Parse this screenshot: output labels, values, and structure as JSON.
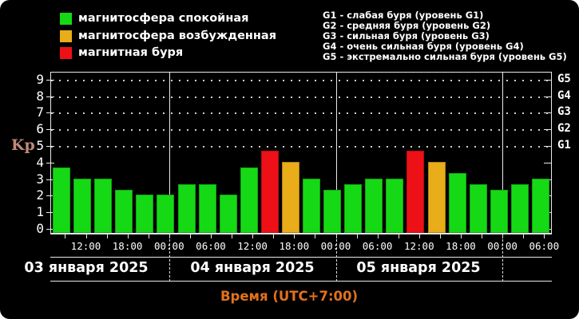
{
  "legend": {
    "items": [
      {
        "status": "quiet",
        "label": "магнитосфера спокойная"
      },
      {
        "status": "excited",
        "label": "магнитосфера возбужденная"
      },
      {
        "status": "storm",
        "label": "магнитная буря"
      }
    ]
  },
  "storm_levels": {
    "lines": [
      "G1 - слабая буря (уровень G1)",
      "G2 - средняя буря (уровень G2)",
      "G3 - сильная буря (уровень G3)",
      "G4 - очень сильная буря (уровень G4)",
      "G5 - экстремально сильная буря (уровень G5)"
    ]
  },
  "y_axis": {
    "label": "Kp",
    "ticks": [
      "0",
      "1",
      "2",
      "3",
      "4",
      "5",
      "6",
      "7",
      "8",
      "9"
    ]
  },
  "right_axis": {
    "labels": [
      "G1",
      "G2",
      "G3",
      "G4",
      "G5"
    ]
  },
  "x_axis": {
    "time_labels": [
      "12:00",
      "18:00",
      "00:00",
      "06:00",
      "12:00",
      "18:00",
      "00:00",
      "06:00",
      "12:00",
      "18:00",
      "00:00",
      "06:00"
    ],
    "label": "Время (UTC+7:00)"
  },
  "dates": [
    "03 января 2025",
    "04 января 2025",
    "05 января 2025"
  ],
  "colors": {
    "background": "#000000",
    "quiet": "#16d916",
    "excited": "#e9ad19",
    "storm": "#ee1017",
    "axis": "#e9e9e9",
    "text": "#ffffff",
    "grid_dot": "#cfcfcf",
    "kp_label": "#c08a76",
    "time_label": "#e2711d"
  },
  "chart_data": {
    "type": "bar",
    "ylabel": "Kp",
    "xlabel": "Время (UTC+7:00)",
    "ylim": [
      0,
      9.4
    ],
    "yticks": [
      0,
      1,
      2,
      3,
      4,
      5,
      6,
      7,
      8,
      9
    ],
    "grid": "dotted horizontal lines at Kp 5-9, right-axis labels G1-G5",
    "legend_position": "top-left",
    "bar_interval_hours": 3,
    "day_labels": [
      "03 января 2025",
      "04 января 2025",
      "05 января 2025"
    ],
    "x_tick_labels": [
      "12:00",
      "18:00",
      "00:00",
      "06:00",
      "12:00",
      "18:00",
      "00:00",
      "06:00",
      "12:00",
      "18:00",
      "00:00",
      "06:00"
    ],
    "values": [
      3.67,
      3.0,
      3.0,
      2.33,
      2.0,
      2.0,
      2.67,
      2.67,
      2.0,
      3.67,
      4.67,
      4.0,
      3.0,
      2.33,
      2.67,
      3.0,
      3.0,
      4.67,
      4.0,
      3.33,
      2.67,
      2.33,
      2.67,
      3.0
    ],
    "statuses": [
      "quiet",
      "quiet",
      "quiet",
      "quiet",
      "quiet",
      "quiet",
      "quiet",
      "quiet",
      "quiet",
      "quiet",
      "storm",
      "excited",
      "quiet",
      "quiet",
      "quiet",
      "quiet",
      "quiet",
      "storm",
      "excited",
      "quiet",
      "quiet",
      "quiet",
      "quiet",
      "quiet"
    ],
    "status_legend": {
      "quiet": "магнитосфера спокойная",
      "excited": "магнитосфера возбужденная",
      "storm": "магнитная буря"
    }
  }
}
